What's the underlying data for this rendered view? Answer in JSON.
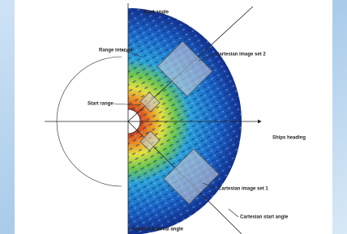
{
  "labels": {
    "start_angle": "Start angle",
    "range_interval": "Range interval",
    "cartesian_image_set_2": "Cartesian image set 2",
    "start_range": "Start range",
    "ships_heading": "Ships heading",
    "cartesian_image_set_1": "Cartesian image set 1",
    "cartesian_start_angle": "Cartesian start angle",
    "azimuth_interval_angle": "Azimuth interval angle"
  }
}
